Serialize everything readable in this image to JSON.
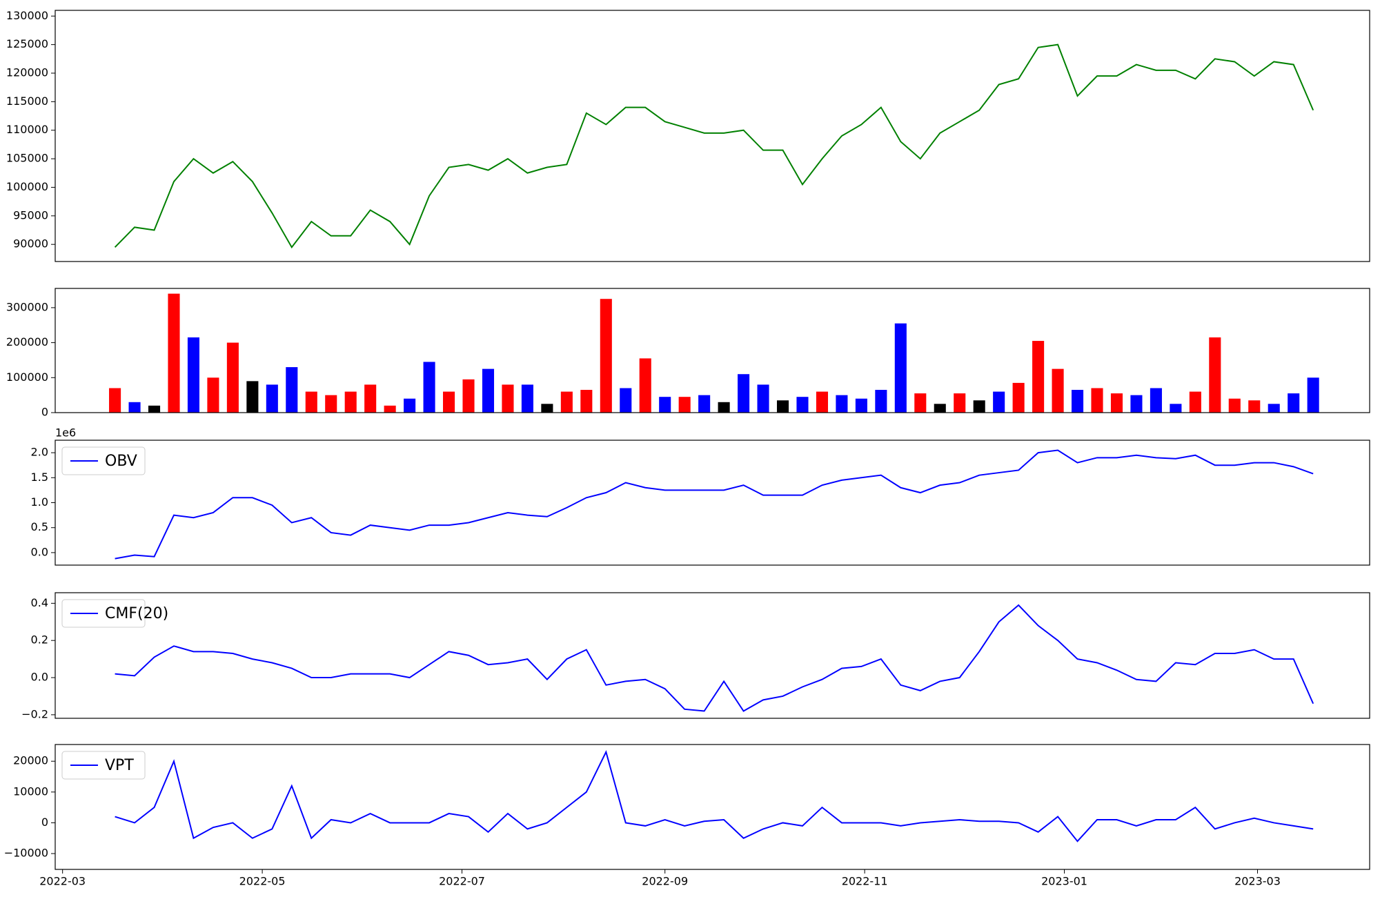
{
  "chart_data": [
    {
      "type": "line",
      "x": [
        16,
        22,
        28,
        34,
        40,
        46,
        52,
        58,
        64,
        70,
        76,
        82,
        88,
        94,
        100,
        106,
        112,
        118,
        124,
        130,
        136,
        142,
        148,
        154,
        160,
        166,
        172,
        178,
        184,
        190,
        196,
        202,
        208,
        214,
        220,
        226,
        232,
        238,
        244,
        250,
        256,
        262,
        268,
        274,
        280,
        286,
        292,
        298,
        304,
        310,
        316,
        322,
        328,
        334,
        340,
        346,
        352,
        358,
        364,
        370,
        376,
        382
      ],
      "series": [
        {
          "color": "green",
          "values": [
            89500,
            93000,
            92500,
            101000,
            105000,
            102500,
            104500,
            101000,
            95500,
            89500,
            94000,
            91500,
            91500,
            96000,
            94000,
            90000,
            98500,
            103500,
            104000,
            103000,
            105000,
            102500,
            103500,
            104000,
            113000,
            111000,
            114000,
            114000,
            111500,
            110500,
            109500,
            109500,
            110000,
            106500,
            106500,
            100500,
            105000,
            109000,
            111000,
            114000,
            108000,
            105000,
            109500,
            111500,
            113500,
            118000,
            119000,
            124500,
            125000,
            116000,
            119500,
            119500,
            121500,
            120500,
            120500,
            119000,
            122500,
            122000,
            119500,
            122000,
            121500,
            113500
          ]
        }
      ],
      "xlim": [
        -2.25,
        399.25
      ],
      "ylim": [
        87000,
        131000
      ],
      "yticks": [
        90000,
        95000,
        100000,
        105000,
        110000,
        115000,
        120000,
        125000,
        130000
      ]
    },
    {
      "type": "bar",
      "x": [
        16,
        22,
        28,
        34,
        40,
        46,
        52,
        58,
        64,
        70,
        76,
        82,
        88,
        94,
        100,
        106,
        112,
        118,
        124,
        130,
        136,
        142,
        148,
        154,
        160,
        166,
        172,
        178,
        184,
        190,
        196,
        202,
        208,
        214,
        220,
        226,
        232,
        238,
        244,
        250,
        256,
        262,
        268,
        274,
        280,
        286,
        292,
        298,
        304,
        310,
        316,
        322,
        328,
        334,
        340,
        346,
        352,
        358,
        364,
        370,
        376,
        382
      ],
      "values": [
        70000,
        30000,
        20000,
        340000,
        215000,
        100000,
        200000,
        90000,
        80000,
        130000,
        60000,
        50000,
        60000,
        80000,
        20000,
        40000,
        145000,
        60000,
        95000,
        125000,
        80000,
        80000,
        25000,
        60000,
        65000,
        325000,
        70000,
        155000,
        45000,
        45000,
        50000,
        30000,
        110000,
        80000,
        35000,
        45000,
        60000,
        50000,
        40000,
        65000,
        255000,
        55000,
        25000,
        55000,
        35000,
        60000,
        85000,
        205000,
        125000,
        65000,
        70000,
        55000,
        50000,
        70000,
        25000,
        60000,
        215000,
        40000,
        35000,
        25000,
        55000,
        100000
      ],
      "colors": [
        "red",
        "blue",
        "black",
        "red",
        "blue",
        "red",
        "red",
        "black",
        "blue",
        "blue",
        "red",
        "red",
        "red",
        "red",
        "red",
        "blue",
        "blue",
        "red",
        "red",
        "blue",
        "red",
        "blue",
        "black",
        "red",
        "red",
        "red",
        "blue",
        "red",
        "blue",
        "red",
        "blue",
        "black",
        "blue",
        "blue",
        "black",
        "blue",
        "red",
        "blue",
        "blue",
        "blue",
        "blue",
        "red",
        "black",
        "red",
        "black",
        "blue",
        "red",
        "red",
        "red",
        "blue",
        "red",
        "red",
        "blue",
        "blue",
        "blue",
        "red",
        "red",
        "red",
        "red",
        "blue",
        "blue",
        "blue"
      ],
      "xlim": [
        -2.25,
        399.25
      ],
      "ylim": [
        0,
        355000
      ],
      "yticks": [
        0,
        100000,
        200000,
        300000
      ]
    },
    {
      "type": "line",
      "x": [
        16,
        22,
        28,
        34,
        40,
        46,
        52,
        58,
        64,
        70,
        76,
        82,
        88,
        94,
        100,
        106,
        112,
        118,
        124,
        130,
        136,
        142,
        148,
        154,
        160,
        166,
        172,
        178,
        184,
        190,
        196,
        202,
        208,
        214,
        220,
        226,
        232,
        238,
        244,
        250,
        256,
        262,
        268,
        274,
        280,
        286,
        292,
        298,
        304,
        310,
        316,
        322,
        328,
        334,
        340,
        346,
        352,
        358,
        364,
        370,
        376,
        382
      ],
      "series": [
        {
          "name": "OBV",
          "color": "blue",
          "values": [
            -120000,
            -50000,
            -80000,
            750000,
            700000,
            800000,
            1100000,
            1100000,
            950000,
            600000,
            700000,
            400000,
            350000,
            550000,
            500000,
            450000,
            550000,
            550000,
            600000,
            700000,
            800000,
            750000,
            720000,
            900000,
            1100000,
            1200000,
            1400000,
            1300000,
            1250000,
            1250000,
            1250000,
            1250000,
            1350000,
            1150000,
            1150000,
            1150000,
            1350000,
            1450000,
            1500000,
            1550000,
            1300000,
            1200000,
            1350000,
            1400000,
            1550000,
            1600000,
            1650000,
            2000000,
            2050000,
            1800000,
            1900000,
            1900000,
            1950000,
            1900000,
            1880000,
            1950000,
            1750000,
            1750000,
            1800000,
            1800000,
            1720000,
            1580000
          ]
        }
      ],
      "offset_label": "1e6",
      "legend": "upper left",
      "xlim": [
        -2.25,
        399.25
      ],
      "ylim": [
        -250000,
        2250000
      ],
      "yticks": [
        {
          "value": 0,
          "label": "0.0"
        },
        {
          "value": 500000,
          "label": "0.5"
        },
        {
          "value": 1000000,
          "label": "1.0"
        },
        {
          "value": 1500000,
          "label": "1.5"
        },
        {
          "value": 2000000,
          "label": "2.0"
        }
      ]
    },
    {
      "type": "line",
      "x": [
        16,
        22,
        28,
        34,
        40,
        46,
        52,
        58,
        64,
        70,
        76,
        82,
        88,
        94,
        100,
        106,
        112,
        118,
        124,
        130,
        136,
        142,
        148,
        154,
        160,
        166,
        172,
        178,
        184,
        190,
        196,
        202,
        208,
        214,
        220,
        226,
        232,
        238,
        244,
        250,
        256,
        262,
        268,
        274,
        280,
        286,
        292,
        298,
        304,
        310,
        316,
        322,
        328,
        334,
        340,
        346,
        352,
        358,
        364,
        370,
        376,
        382
      ],
      "series": [
        {
          "name": "CMF(20)",
          "color": "blue",
          "values": [
            0.02,
            0.01,
            0.11,
            0.17,
            0.14,
            0.14,
            0.13,
            0.1,
            0.08,
            0.05,
            0.0,
            0.0,
            0.02,
            0.02,
            0.02,
            0.0,
            0.07,
            0.14,
            0.12,
            0.07,
            0.08,
            0.1,
            -0.01,
            0.1,
            0.15,
            -0.04,
            -0.02,
            -0.01,
            -0.06,
            -0.17,
            -0.18,
            -0.02,
            -0.18,
            -0.12,
            -0.1,
            -0.05,
            -0.01,
            0.05,
            0.06,
            0.1,
            -0.04,
            -0.07,
            -0.02,
            0.0,
            0.14,
            0.3,
            0.39,
            0.28,
            0.2,
            0.1,
            0.08,
            0.04,
            -0.01,
            -0.02,
            0.08,
            0.07,
            0.13,
            0.13,
            0.15,
            0.1,
            0.1,
            -0.14
          ]
        }
      ],
      "legend": "upper left",
      "xlim": [
        -2.25,
        399.25
      ],
      "ylim": [
        -0.219,
        0.457
      ],
      "yticks": [
        {
          "value": -0.2,
          "label": "−0.2"
        },
        {
          "value": 0,
          "label": "0.0"
        },
        0.2,
        0.4
      ]
    },
    {
      "type": "line",
      "x": [
        16,
        22,
        28,
        34,
        40,
        46,
        52,
        58,
        64,
        70,
        76,
        82,
        88,
        94,
        100,
        106,
        112,
        118,
        124,
        130,
        136,
        142,
        148,
        154,
        160,
        166,
        172,
        178,
        184,
        190,
        196,
        202,
        208,
        214,
        220,
        226,
        232,
        238,
        244,
        250,
        256,
        262,
        268,
        274,
        280,
        286,
        292,
        298,
        304,
        310,
        316,
        322,
        328,
        334,
        340,
        346,
        352,
        358,
        364,
        370,
        376,
        382
      ],
      "series": [
        {
          "name": "VPT",
          "color": "blue",
          "values": [
            2000,
            0,
            5000,
            20000,
            -5000,
            -1500,
            0,
            -5000,
            -2000,
            12000,
            -5000,
            1000,
            0,
            3000,
            0,
            0,
            0,
            3000,
            2000,
            -3000,
            3000,
            -2000,
            0,
            5000,
            10000,
            23000,
            0,
            -1000,
            1000,
            -1000,
            500,
            1000,
            -5000,
            -2000,
            0,
            -1000,
            5000,
            0,
            0,
            0,
            -1000,
            0,
            500,
            1000,
            500,
            500,
            0,
            -3000,
            2000,
            -6000,
            1000,
            1000,
            -1000,
            1000,
            1000,
            5000,
            -2000,
            0,
            1500,
            0,
            -1000,
            -2000
          ]
        }
      ],
      "legend": "upper left",
      "xlim": [
        -2.25,
        399.25
      ],
      "xticks": [
        {
          "value": 0,
          "label": "2022-03"
        },
        {
          "value": 61,
          "label": "2022-05"
        },
        {
          "value": 122,
          "label": "2022-07"
        },
        {
          "value": 184,
          "label": "2022-09"
        },
        {
          "value": 245,
          "label": "2022-11"
        },
        {
          "value": 306,
          "label": "2023-01"
        },
        {
          "value": 365,
          "label": "2023-03"
        }
      ],
      "ylim": [
        -15140,
        25430
      ],
      "yticks": [
        {
          "value": -10000,
          "label": "−10000"
        },
        0,
        10000,
        20000
      ]
    }
  ]
}
